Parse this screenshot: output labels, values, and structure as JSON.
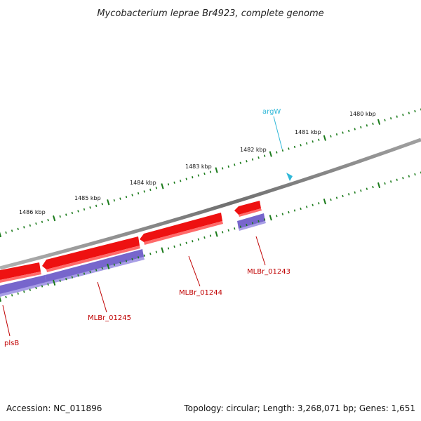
{
  "title": "Mycobacterium leprae Br4923, complete genome",
  "ruler": {
    "labels": [
      "1486 kbp",
      "1485 kbp",
      "1484 kbp",
      "1483 kbp",
      "1482 kbp",
      "1481 kbp",
      "1480 kbp"
    ]
  },
  "genes": {
    "plsB": "plsB",
    "mlbr_01245": "MLBr_01245",
    "mlbr_01244": "MLBr_01244",
    "mlbr_01243": "MLBr_01243",
    "argW": "argW"
  },
  "colors": {
    "gene": "#ee1111",
    "cds": "#7766cc",
    "trna": "#30b8d8",
    "ticks": "#1a7a1a",
    "backbone": "#808080"
  },
  "footer": {
    "accession": "Accession: NC_011896",
    "info": "Topology: circular; Length: 3,268,071 bp; Genes: 1,651"
  }
}
